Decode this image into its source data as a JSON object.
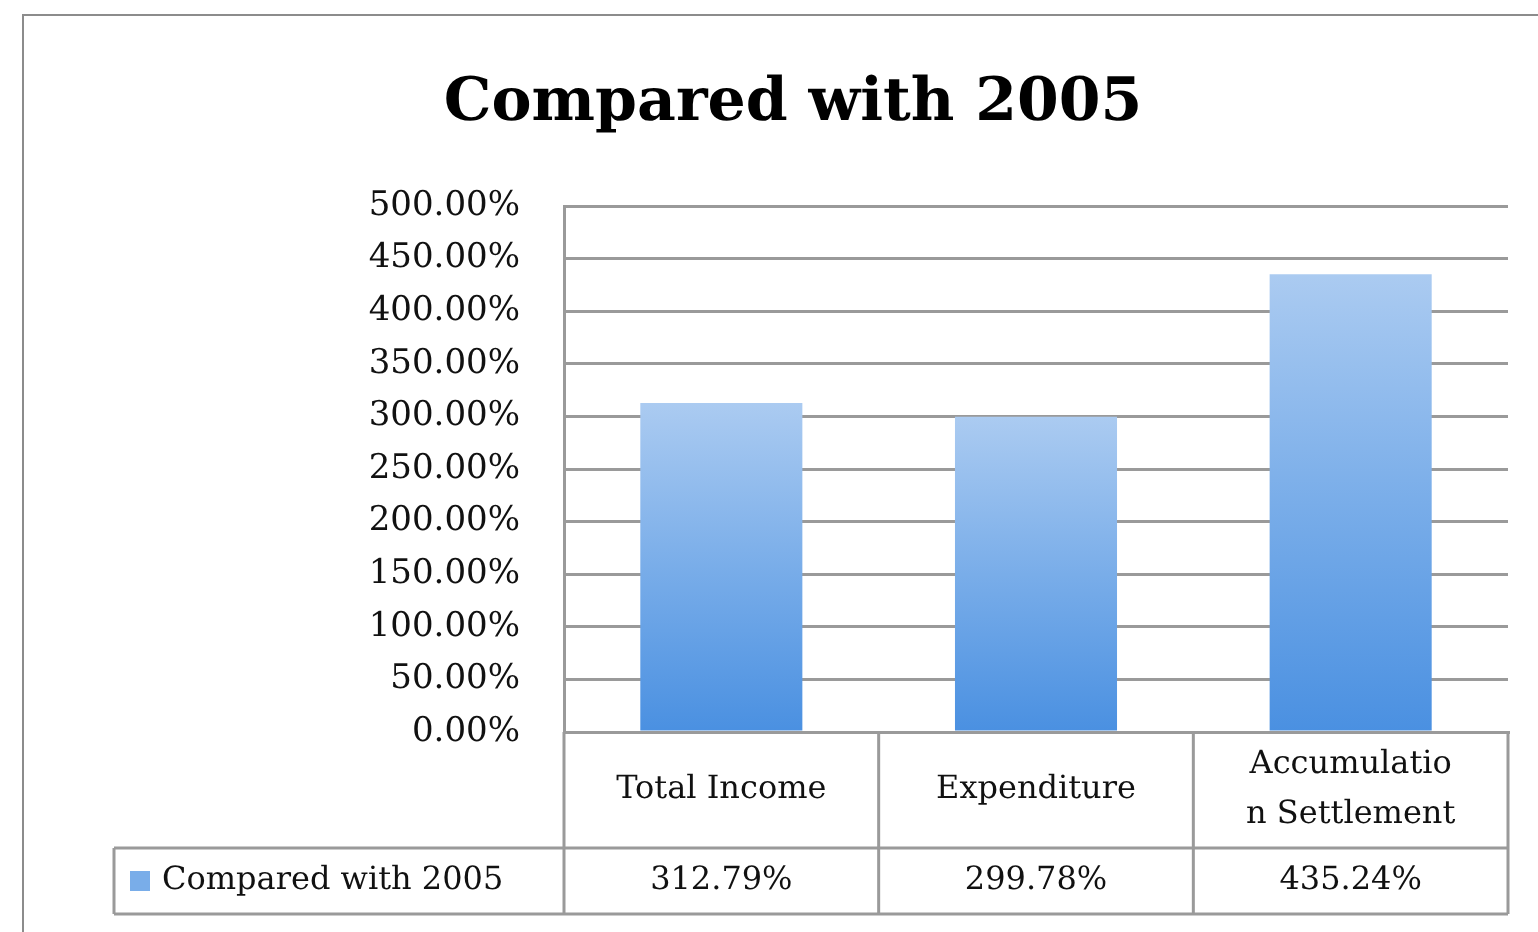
{
  "chart_data": {
    "type": "bar",
    "title": "Compared with 2005",
    "categories": [
      "Total Income",
      "Expenditure",
      "Accumulation Settlement"
    ],
    "series": [
      {
        "name": "Compared with 2005",
        "color": "#79ade9",
        "values": [
          312.79,
          299.78,
          435.24
        ],
        "value_labels": [
          "312.79%",
          "299.78%",
          "435.24%"
        ]
      }
    ],
    "ylim": [
      0,
      500
    ],
    "yticks": [
      {
        "value": 0,
        "label": "0.00%"
      },
      {
        "value": 50,
        "label": "50.00%"
      },
      {
        "value": 100,
        "label": "100.00%"
      },
      {
        "value": 150,
        "label": "150.00%"
      },
      {
        "value": 200,
        "label": "200.00%"
      },
      {
        "value": 250,
        "label": "250.00%"
      },
      {
        "value": 300,
        "label": "300.00%"
      },
      {
        "value": 350,
        "label": "350.00%"
      },
      {
        "value": 400,
        "label": "400.00%"
      },
      {
        "value": 450,
        "label": "450.00%"
      },
      {
        "value": 500,
        "label": "500.00%"
      }
    ],
    "grid": "y",
    "legend": "bottom"
  }
}
